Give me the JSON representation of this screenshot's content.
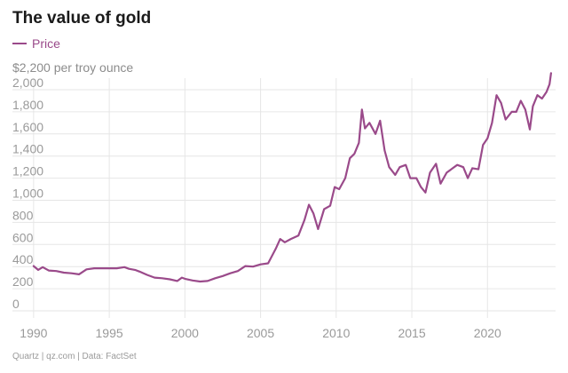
{
  "header": {
    "title": "The value of gold",
    "legend_label": "Price",
    "unit_label": "$2,200 per troy ounce",
    "source": "Quartz | qz.com | Data: FactSet"
  },
  "colors": {
    "series": "#9a4a8a",
    "grid": "#e6e6e6",
    "tick": "#9a9a9a"
  },
  "chart_data": {
    "type": "line",
    "title": "The value of gold",
    "ylabel": "$2,200 per troy ounce",
    "xlim": [
      1988.6,
      2024.5
    ],
    "ylim": [
      0,
      2200
    ],
    "x_ticks": [
      1990,
      1995,
      2000,
      2005,
      2010,
      2015,
      2020
    ],
    "y_ticks": [
      0,
      200,
      400,
      600,
      800,
      1000,
      1200,
      1400,
      1600,
      1800,
      2000
    ],
    "y_tick_labels": [
      "0",
      "200",
      "400",
      "600",
      "800",
      "1,000",
      "1,200",
      "1,400",
      "1,600",
      "1,800",
      "2,000"
    ],
    "grid": true,
    "legend": "top-left",
    "series": [
      {
        "name": "Price",
        "color": "#9a4a8a",
        "x": [
          1990.0,
          1990.3,
          1990.6,
          1991.0,
          1991.5,
          1992.0,
          1992.5,
          1993.0,
          1993.5,
          1994.0,
          1994.5,
          1995.0,
          1995.5,
          1996.0,
          1996.3,
          1996.7,
          1997.0,
          1997.5,
          1998.0,
          1998.5,
          1999.0,
          1999.5,
          1999.8,
          2000.0,
          2000.5,
          2001.0,
          2001.5,
          2002.0,
          2002.5,
          2003.0,
          2003.5,
          2004.0,
          2004.5,
          2005.0,
          2005.5,
          2006.0,
          2006.3,
          2006.6,
          2007.0,
          2007.5,
          2007.9,
          2008.2,
          2008.5,
          2008.8,
          2009.2,
          2009.6,
          2009.9,
          2010.2,
          2010.6,
          2010.9,
          2011.2,
          2011.5,
          2011.7,
          2011.9,
          2012.2,
          2012.6,
          2012.9,
          2013.2,
          2013.5,
          2013.9,
          2014.2,
          2014.6,
          2014.9,
          2015.3,
          2015.6,
          2015.9,
          2016.2,
          2016.6,
          2016.9,
          2017.3,
          2017.7,
          2018.0,
          2018.4,
          2018.7,
          2019.0,
          2019.4,
          2019.7,
          2020.0,
          2020.3,
          2020.6,
          2020.9,
          2021.2,
          2021.6,
          2021.9,
          2022.2,
          2022.5,
          2022.8,
          2023.0,
          2023.3,
          2023.6,
          2023.9,
          2024.1,
          2024.2
        ],
        "values": [
          405,
          370,
          395,
          365,
          360,
          345,
          340,
          330,
          375,
          385,
          385,
          385,
          385,
          395,
          380,
          370,
          355,
          325,
          300,
          295,
          285,
          270,
          300,
          290,
          275,
          265,
          270,
          295,
          315,
          340,
          360,
          405,
          400,
          420,
          430,
          560,
          650,
          620,
          650,
          680,
          820,
          960,
          880,
          740,
          920,
          950,
          1120,
          1100,
          1200,
          1380,
          1420,
          1520,
          1820,
          1650,
          1700,
          1600,
          1720,
          1450,
          1300,
          1230,
          1300,
          1320,
          1200,
          1200,
          1120,
          1070,
          1250,
          1330,
          1150,
          1250,
          1290,
          1320,
          1300,
          1200,
          1290,
          1280,
          1500,
          1560,
          1700,
          1950,
          1880,
          1730,
          1800,
          1800,
          1900,
          1820,
          1640,
          1850,
          1950,
          1920,
          1980,
          2050,
          2150
        ]
      }
    ]
  }
}
